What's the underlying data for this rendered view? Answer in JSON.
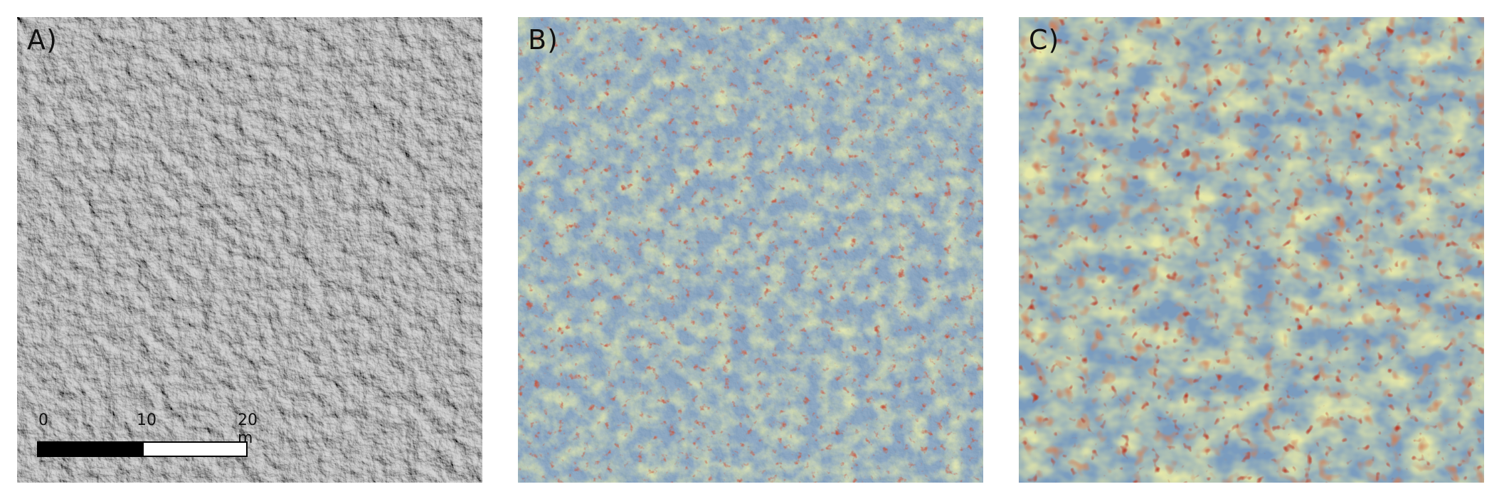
{
  "panels": [
    {
      "id": "a",
      "label": "A)",
      "kind": "hillshade"
    },
    {
      "id": "b",
      "label": "B)",
      "kind": "relief-overlay-fine"
    },
    {
      "id": "c",
      "label": "C)",
      "kind": "relief-overlay-coarse"
    }
  ],
  "scalebar": {
    "ticks": [
      "0",
      "10",
      "20 m"
    ]
  },
  "colors": {
    "hillshade_base": "#b9b9b9",
    "low": "#6f93b5",
    "mid": "#e3e7a6",
    "high": "#c0503a"
  }
}
